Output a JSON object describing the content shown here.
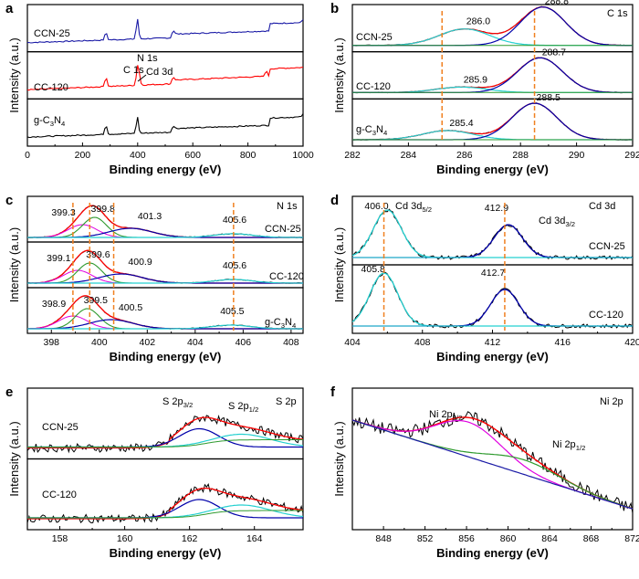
{
  "colors": {
    "black": "#000000",
    "red": "#ff0000",
    "blue": "#1a1aa6",
    "navy": "#0000aa",
    "cyan": "#24d0d0",
    "green": "#2e9a2e",
    "magenta": "#e000e0",
    "orange": "#f08020"
  },
  "chart_data": [
    {
      "id": "a",
      "panel_letter": "a",
      "type": "line",
      "xlabel": "Binding energy (eV)",
      "ylabel": "Intensity (a.u.)",
      "xlim": [
        0,
        1000
      ],
      "xticks": [
        0,
        200,
        400,
        600,
        800,
        1000
      ],
      "ylim": [
        0,
        3
      ],
      "series": [
        {
          "name": "CCN-25",
          "color": "#1a1aa6",
          "label": "CCN-25",
          "offset": 2,
          "base": 0.25,
          "peaks": [
            [
              285,
              0.28
            ],
            [
              399,
              0.75
            ],
            [
              530,
              0.12
            ],
            [
              1000,
              0.1
            ]
          ],
          "slope": 0.0004
        },
        {
          "name": "CC-120",
          "color": "#ff0000",
          "label": "CC-120",
          "offset": 1,
          "base": 0.2,
          "peaks": [
            [
              285,
              0.35
            ],
            [
              399,
              0.6
            ],
            [
              405,
              0.35
            ],
            [
              530,
              0.1
            ],
            [
              866,
              0.2
            ]
          ],
          "slope": 0.0005
        },
        {
          "name": "g-C3N4",
          "color": "#000000",
          "label": "g-C3N4",
          "offset": 0,
          "base": 0.2,
          "peaks": [
            [
              285,
              0.35
            ],
            [
              399,
              0.6
            ],
            [
              530,
              0.08
            ],
            [
              1000,
              0.1
            ]
          ],
          "slope": 0.0004
        }
      ],
      "annotations": [
        {
          "text": "N 1s",
          "x": 400,
          "y": 1.95
        },
        {
          "text": "C 1s",
          "x": 285,
          "y": 1.75
        },
        {
          "text": "Cd 3d",
          "x": 470,
          "y": 1.8
        }
      ]
    },
    {
      "id": "b",
      "panel_letter": "b",
      "type": "line",
      "title": "C 1s",
      "xlabel": "Binding energy (eV)",
      "ylabel": "Intensity (a.u.)",
      "xlim": [
        282,
        292
      ],
      "xticks": [
        282,
        284,
        286,
        288,
        290,
        292
      ],
      "rows": [
        {
          "label": "CCN-25",
          "peaks": [
            {
              "center": 286.0,
              "label": "286.0"
            },
            {
              "center": 288.8,
              "label": "288.8"
            }
          ]
        },
        {
          "label": "CC-120",
          "peaks": [
            {
              "center": 285.9,
              "label": "285.9"
            },
            {
              "center": 288.7,
              "label": "288.7"
            }
          ]
        },
        {
          "label": "g-C3N4",
          "peaks": [
            {
              "center": 285.4,
              "label": "285.4"
            },
            {
              "center": 288.5,
              "label": "288.5"
            }
          ]
        }
      ],
      "dashed_lines": [
        285.2,
        288.5
      ]
    },
    {
      "id": "c",
      "panel_letter": "c",
      "type": "line",
      "title": "N 1s",
      "xlabel": "Binding energy (eV)",
      "ylabel": "Intensity (a.u.)",
      "xlim": [
        397,
        408.5
      ],
      "xticks": [
        398,
        400,
        402,
        404,
        406,
        408
      ],
      "rows": [
        {
          "label": "CCN-25",
          "peaks": [
            {
              "center": 399.3,
              "label": "399.3"
            },
            {
              "center": 399.8,
              "label": "399.8"
            },
            {
              "center": 401.3,
              "label": "401.3"
            },
            {
              "center": 405.6,
              "label": "405.6"
            }
          ]
        },
        {
          "label": "CC-120",
          "peaks": [
            {
              "center": 399.1,
              "label": "399.1"
            },
            {
              "center": 399.6,
              "label": "399.6"
            },
            {
              "center": 400.9,
              "label": "400.9"
            },
            {
              "center": 405.6,
              "label": "405.6"
            }
          ]
        },
        {
          "label": "g-C3N4",
          "peaks": [
            {
              "center": 398.9,
              "label": "398.9"
            },
            {
              "center": 399.5,
              "label": "399.5"
            },
            {
              "center": 400.5,
              "label": "400.5"
            },
            {
              "center": 405.5,
              "label": "405.5"
            }
          ]
        }
      ],
      "dashed_lines": [
        398.9,
        399.6,
        400.6,
        405.6
      ]
    },
    {
      "id": "d",
      "panel_letter": "d",
      "type": "line",
      "title": "Cd 3d",
      "xlabel": "Binding energy (eV)",
      "ylabel": "Intensity (a.u.)",
      "xlim": [
        404,
        420
      ],
      "xticks": [
        404,
        408,
        412,
        416,
        420
      ],
      "rows": [
        {
          "label": "CCN-25",
          "peaks": [
            {
              "center": 406.0,
              "label": "406.0"
            },
            {
              "center": 412.9,
              "label": "412.9"
            }
          ]
        },
        {
          "label": "CC-120",
          "peaks": [
            {
              "center": 405.8,
              "label": "405.8"
            },
            {
              "center": 412.7,
              "label": "412.7"
            }
          ]
        }
      ],
      "peak_names": [
        "Cd 3d5/2",
        "Cd 3d3/2"
      ],
      "dashed_lines": [
        405.8,
        412.7
      ]
    },
    {
      "id": "e",
      "panel_letter": "e",
      "type": "line",
      "xlabel": "Binding energy (eV)",
      "ylabel": "Intensity (a.u.)",
      "xlim": [
        157,
        165.5
      ],
      "xticks": [
        158,
        160,
        162,
        164
      ],
      "rows": [
        {
          "label": "CCN-25"
        },
        {
          "label": "CC-120"
        }
      ],
      "peak_names": [
        "S 2p3/2",
        "S 2p1/2",
        "S 2p"
      ],
      "peaks_ev": [
        162.3,
        163.5
      ]
    },
    {
      "id": "f",
      "panel_letter": "f",
      "type": "line",
      "title": "Ni 2p",
      "xlabel": "Binding energy (eV)",
      "ylabel": "Intensity (a.u.)",
      "xlim": [
        845,
        872
      ],
      "xticks": [
        848,
        852,
        856,
        860,
        864,
        868,
        872
      ],
      "peak_names": [
        "Ni 2p3/2",
        "Ni 2p1/2"
      ],
      "peaks_ev": [
        856,
        861.5
      ]
    }
  ]
}
